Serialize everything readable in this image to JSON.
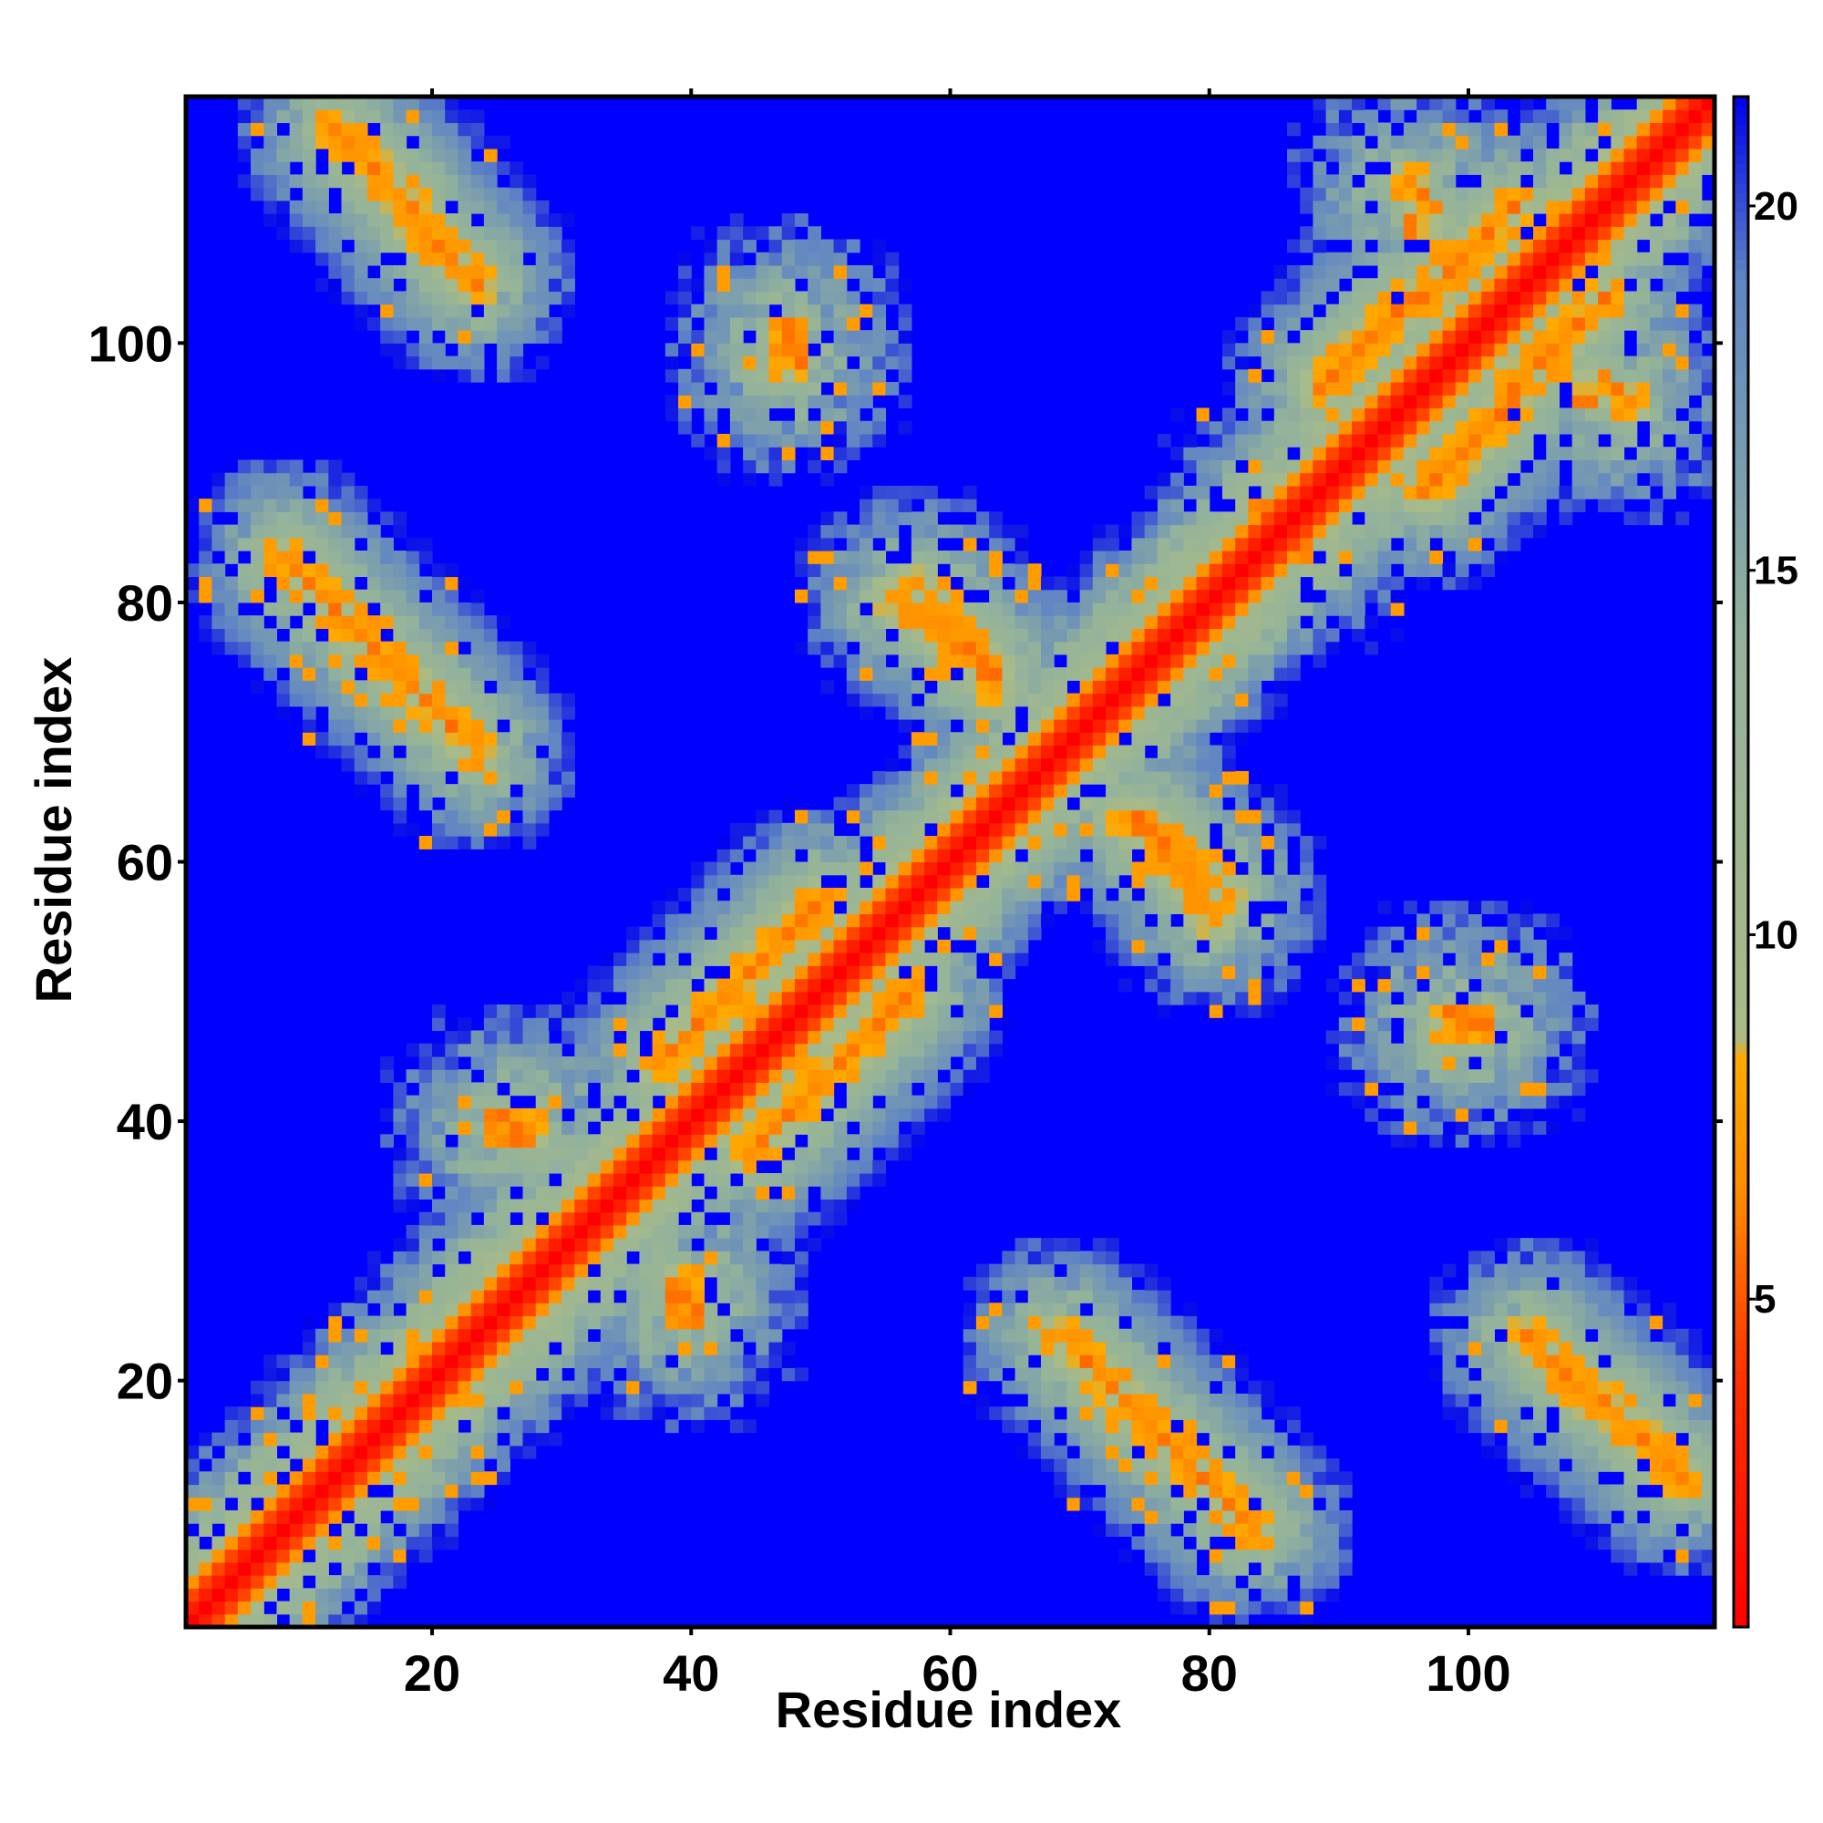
{
  "chart_data": {
    "type": "heatmap",
    "title": "",
    "xlabel": "Residue index",
    "ylabel": "Residue index",
    "xlim": [
      1,
      119
    ],
    "ylim": [
      1,
      119
    ],
    "n_residues": 118,
    "x_ticks": [
      20,
      40,
      60,
      80,
      100
    ],
    "y_ticks": [
      20,
      40,
      60,
      80,
      100
    ],
    "grid": false,
    "colorbar": {
      "min": 0.5,
      "max": 21.5,
      "ticks": [
        5,
        10,
        15,
        20
      ],
      "stops": [
        {
          "value": 0.5,
          "color": "#ff0000"
        },
        {
          "value": 4.0,
          "color": "#ff3300"
        },
        {
          "value": 6.5,
          "color": "#ff8c00"
        },
        {
          "value": 8.3,
          "color": "#ffaa00"
        },
        {
          "value": 8.6,
          "color": "#a8ba88"
        },
        {
          "value": 14.0,
          "color": "#94b39a"
        },
        {
          "value": 19.0,
          "color": "#5f85c4"
        },
        {
          "value": 21.5,
          "color": "#0000ee"
        }
      ],
      "background_color": "#0000ff"
    },
    "value_description": "pairwise residue distance; symmetric matrix with diagonal contacts",
    "contact_features": [
      {
        "type": "diagonal",
        "from": 1,
        "to": 118,
        "width": 6
      },
      {
        "type": "antiparallel",
        "x": [
          12,
          23
        ],
        "y": [
          116,
          104
        ]
      },
      {
        "type": "antiparallel",
        "x": [
          8,
          23
        ],
        "y": [
          83,
          68
        ]
      },
      {
        "type": "antiparallel",
        "x": [
          55,
          63
        ],
        "y": [
          80,
          74
        ]
      },
      {
        "type": "antiparallel",
        "x": [
          73,
          81
        ],
        "y": [
          63,
          57
        ]
      },
      {
        "type": "antiparallel",
        "x": [
          68,
          83
        ],
        "y": [
          23,
          8
        ]
      },
      {
        "type": "antiparallel",
        "x": [
          104,
          116
        ],
        "y": [
          23,
          12
        ]
      },
      {
        "type": "parallel",
        "x": [
          37,
          50
        ],
        "y": [
          44,
          57
        ]
      },
      {
        "type": "parallel",
        "x": [
          44,
          57
        ],
        "y": [
          37,
          50
        ]
      },
      {
        "type": "parallel",
        "x": [
          88,
          103
        ],
        "y": [
          96,
          110
        ]
      },
      {
        "type": "parallel",
        "x": [
          96,
          110
        ],
        "y": [
          88,
          103
        ]
      },
      {
        "type": "patch",
        "x": 25,
        "y": 39
      },
      {
        "type": "patch",
        "x": 39,
        "y": 27
      },
      {
        "type": "patch",
        "x": 84,
        "y": 86
      },
      {
        "type": "patch",
        "x": 98,
        "y": 47
      },
      {
        "type": "patch",
        "x": 47,
        "y": 100
      },
      {
        "type": "patch",
        "x": 109,
        "y": 96
      },
      {
        "type": "patch",
        "x": 95,
        "y": 112
      }
    ]
  }
}
